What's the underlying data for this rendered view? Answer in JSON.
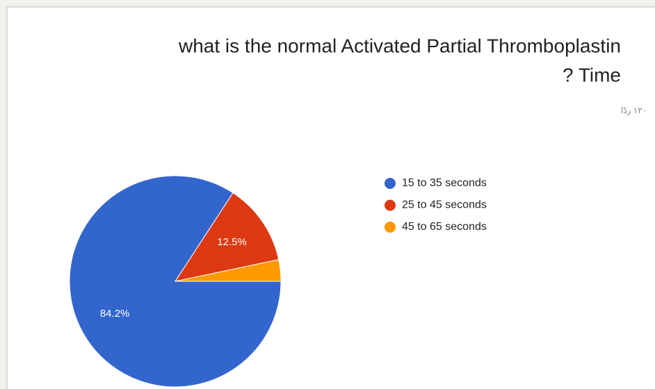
{
  "title": [
    "what is the normal Activated Partial Thromboplastin",
    "? Time"
  ],
  "subtitle": "١٢٠ ردًا",
  "chart_data": {
    "type": "pie",
    "categories": [
      "15 to 35 seconds",
      "25 to 45 seconds",
      "45 to 65 seconds"
    ],
    "values": [
      84.2,
      12.5,
      3.3
    ],
    "value_labels": [
      "84.2%",
      "12.5%",
      null
    ],
    "colors": [
      "#3366cc",
      "#dc3912",
      "#ff9900"
    ],
    "legend": "right"
  }
}
